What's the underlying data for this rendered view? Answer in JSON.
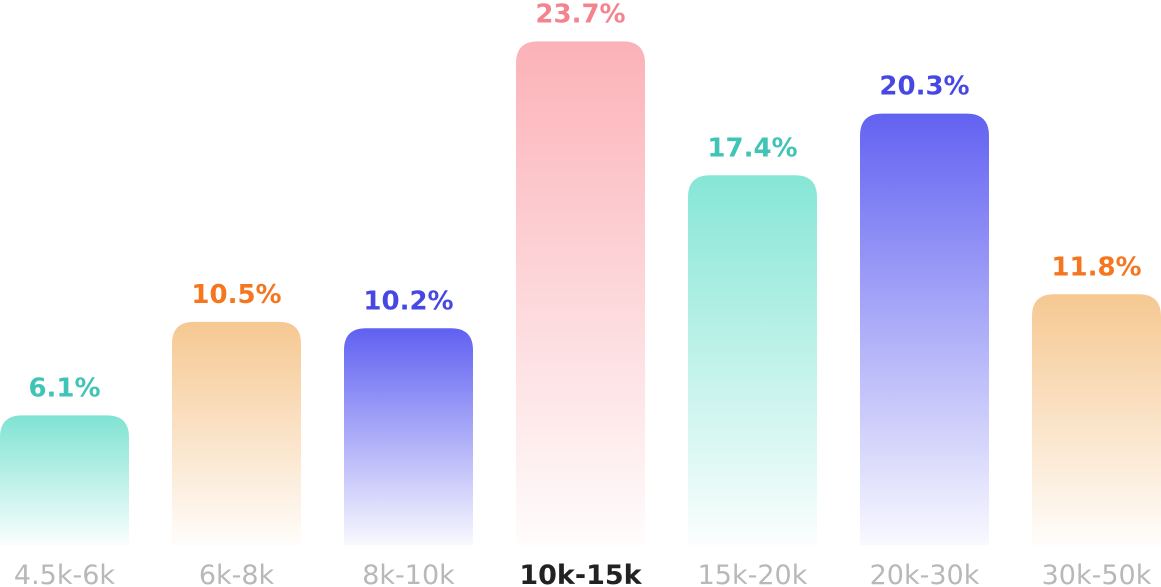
{
  "chart_data": {
    "type": "bar",
    "title": "",
    "xlabel": "",
    "ylabel": "",
    "categories": [
      "4.5k-6k",
      "6k-8k",
      "8k-10k",
      "10k-15k",
      "15k-20k",
      "20k-30k",
      "30k-50k"
    ],
    "values": [
      6.1,
      10.5,
      10.2,
      23.7,
      17.4,
      20.3,
      11.8
    ],
    "value_labels": [
      "6.1%",
      "10.5%",
      "10.2%",
      "23.7%",
      "17.4%",
      "20.3%",
      "11.8%"
    ],
    "ylim": [
      0,
      26
    ],
    "grid": false,
    "highlighted_category": "10k-15k",
    "bar_colors": [
      "#7fe3d3",
      "#f6c892",
      "#6060f2",
      "#fbb2b8",
      "#86e6d6",
      "#6262f2",
      "#f6c892"
    ],
    "value_label_colors": [
      "#3fc4b6",
      "#f5761f",
      "#4748e3",
      "#f3848e",
      "#3fc4b6",
      "#4748e3",
      "#f5761f"
    ],
    "tick_label_color": "#b8b8b8",
    "highlight_tick_label_color": "#222222"
  }
}
